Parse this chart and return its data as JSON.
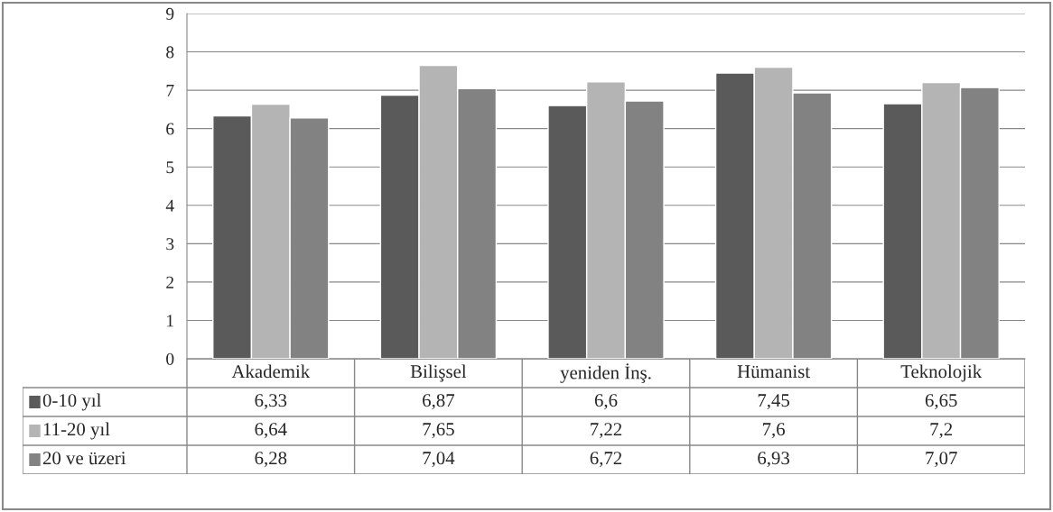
{
  "chart_data": {
    "type": "bar",
    "categories": [
      "Akademik",
      "Bilişsel",
      "yeniden İnş.",
      "Hümanist",
      "Teknolojik"
    ],
    "series": [
      {
        "name": "0-10 yıl",
        "color": "#5a5a5a",
        "values": [
          6.33,
          6.87,
          6.6,
          7.45,
          6.65
        ],
        "value_labels": [
          "6,33",
          "6,87",
          "6,6",
          "7,45",
          "6,65"
        ]
      },
      {
        "name": "11-20 yıl",
        "color": "#b4b4b4",
        "values": [
          6.64,
          7.65,
          7.22,
          7.6,
          7.2
        ],
        "value_labels": [
          "6,64",
          "7,65",
          "7,22",
          "7,6",
          "7,2"
        ]
      },
      {
        "name": "20 ve üzeri",
        "color": "#828282",
        "values": [
          6.28,
          7.04,
          6.72,
          6.93,
          7.07
        ],
        "value_labels": [
          "6,28",
          "7,04",
          "6,72",
          "6,93",
          "7,07"
        ]
      }
    ],
    "ylim": [
      0,
      9
    ],
    "yticks": [
      0,
      1,
      2,
      3,
      4,
      5,
      6,
      7,
      8,
      9
    ],
    "grid": "y",
    "legend": "bottom"
  }
}
